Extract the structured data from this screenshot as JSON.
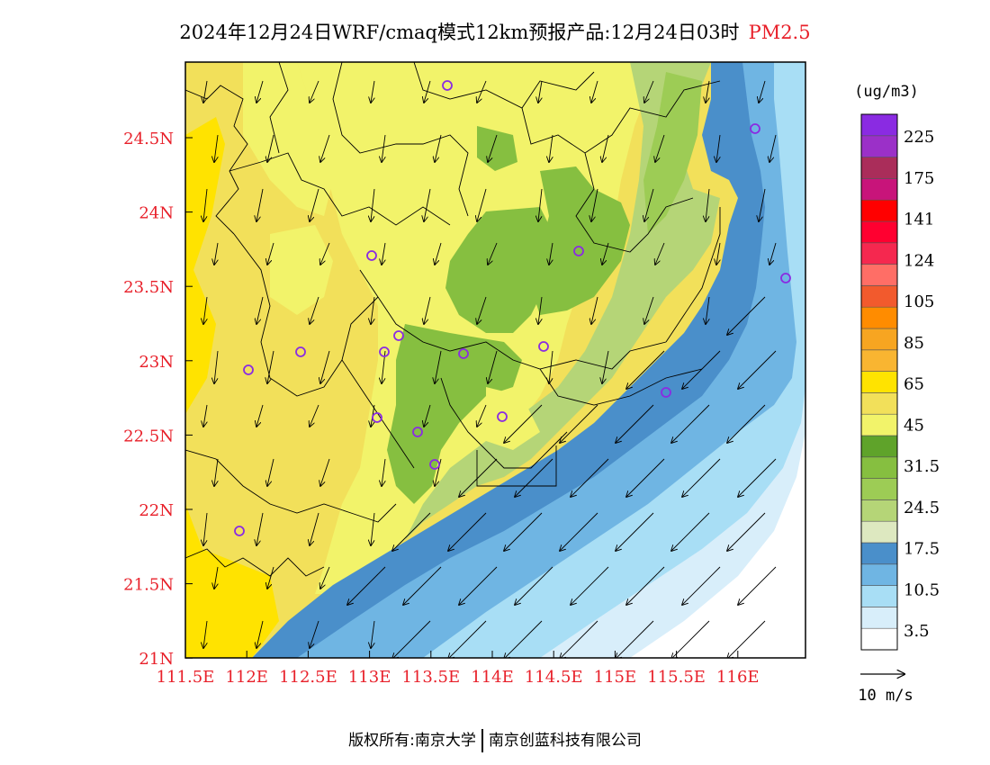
{
  "title": {
    "main": "2024年12月24日WRF/cmaq模式12km预报产品:12月24日03时",
    "pollutant": "PM2.5"
  },
  "axes": {
    "lat_labels": [
      "24.5N",
      "24N",
      "23.5N",
      "23N",
      "22.5N",
      "22N",
      "21.5N",
      "21N"
    ],
    "lon_labels": [
      "111.5E",
      "112E",
      "112.5E",
      "113E",
      "113.5E",
      "114E",
      "114.5E",
      "115E",
      "115.5E",
      "116E"
    ],
    "label_color": "#e8202a"
  },
  "colorbar": {
    "unit": "(ug/m3)",
    "labels": [
      "225",
      "175",
      "141",
      "124",
      "105",
      "85",
      "65",
      "45",
      "31.5",
      "24.5",
      "17.5",
      "10.5",
      "3.5"
    ],
    "colors": [
      "#ffffff",
      "#d8eefa",
      "#a8def5",
      "#6fb5e3",
      "#4a8fca",
      "#dde8c0",
      "#b5d577",
      "#9dcc55",
      "#86bf40",
      "#5fa32a",
      "#f2f36a",
      "#f2e05a",
      "#ffe300",
      "#f9b531",
      "#f7a521",
      "#ff8c00",
      "#f25a2d",
      "#ff6e66",
      "#f5284f",
      "#ff0030",
      "#ff0000",
      "#c8147a",
      "#aa2d5a",
      "#9b30c8",
      "#8a2be2"
    ]
  },
  "wind": {
    "label": "10 m/s"
  },
  "map_colors": {
    "land_yellow": "#f2f36a",
    "bright_yellow": "#ffe300",
    "pale_yellow": "#f2e05a",
    "green_mid": "#86bf40",
    "green_dark": "#5fa32a",
    "green_light": "#b5d577",
    "blue_dark": "#4a8fca",
    "blue_mid": "#6fb5e3",
    "blue_light": "#a8def5",
    "blue_pale": "#d8eefa",
    "city_marker": "#8a2be2"
  },
  "footer": {
    "left": "版权所有:南京大学",
    "right": "南京创蓝科技有限公司"
  }
}
